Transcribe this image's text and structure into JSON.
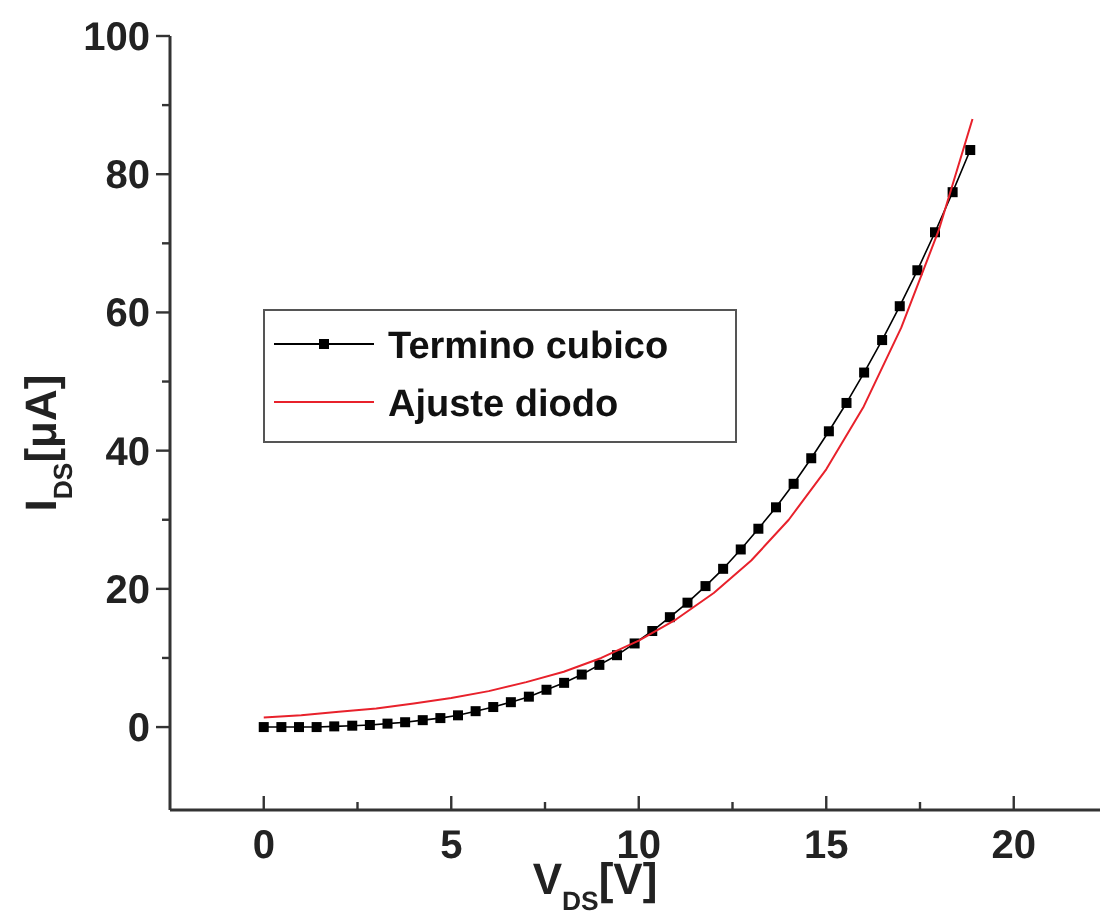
{
  "chart_data": {
    "type": "line",
    "xlabel": "V$_{DS}$[V]",
    "ylabel": "I$_{DS}$[μA]",
    "xlim": [
      -2.5,
      22.3
    ],
    "ylim": [
      -12,
      100
    ],
    "xticks": [
      0,
      {
        "value": 2.5,
        "label": null
      },
      5,
      {
        "value": 7.5,
        "label": null
      },
      10,
      {
        "value": 12.5,
        "label": null
      },
      15,
      {
        "value": 17.5,
        "label": null
      },
      20
    ],
    "yticks": [
      0,
      {
        "value": 10,
        "label": null
      },
      20,
      {
        "value": 30,
        "label": null
      },
      40,
      {
        "value": 50,
        "label": null
      },
      60,
      {
        "value": 70,
        "label": null
      },
      80,
      {
        "value": 90,
        "label": null
      },
      100
    ],
    "grid": false,
    "legend": "left",
    "line_style": "solid",
    "series": [
      {
        "name": "Termino cubico",
        "color": "#000000",
        "marker": "square",
        "x": [
          0,
          0.47,
          0.94,
          1.41,
          1.88,
          2.36,
          2.83,
          3.3,
          3.77,
          4.24,
          4.71,
          5.18,
          5.65,
          6.12,
          6.59,
          7.07,
          7.54,
          8.01,
          8.48,
          8.95,
          9.42,
          9.89,
          10.36,
          10.83,
          11.3,
          11.78,
          12.25,
          12.72,
          13.19,
          13.66,
          14.13,
          14.6,
          15.07,
          15.54,
          16.01,
          16.49,
          16.96,
          17.43,
          17.9,
          18.37,
          18.84
        ],
        "values": [
          0,
          0,
          0,
          0,
          0.1,
          0.2,
          0.3,
          0.5,
          0.7,
          1,
          1.3,
          1.7,
          2.3,
          2.9,
          3.6,
          4.4,
          5.4,
          6.4,
          7.6,
          9,
          10.4,
          12.1,
          13.9,
          15.9,
          18,
          20.4,
          22.9,
          25.7,
          28.7,
          31.8,
          35.2,
          38.9,
          42.8,
          46.9,
          51.3,
          56,
          60.9,
          66.1,
          71.6,
          77.4,
          83.5
        ]
      },
      {
        "name": "Ajuste diodo",
        "color": "#e8212b",
        "marker": "none",
        "x": [
          0,
          1,
          2,
          3,
          4,
          5,
          6,
          7,
          8,
          9,
          10,
          11,
          12,
          13,
          14,
          15,
          16,
          17,
          18,
          18.9
        ],
        "values": [
          1.4,
          1.7,
          2.2,
          2.7,
          3.4,
          4.2,
          5.2,
          6.5,
          8,
          10,
          12.5,
          15.6,
          19.4,
          24.1,
          30,
          37.3,
          46.4,
          57.8,
          71.9,
          88
        ]
      }
    ]
  }
}
